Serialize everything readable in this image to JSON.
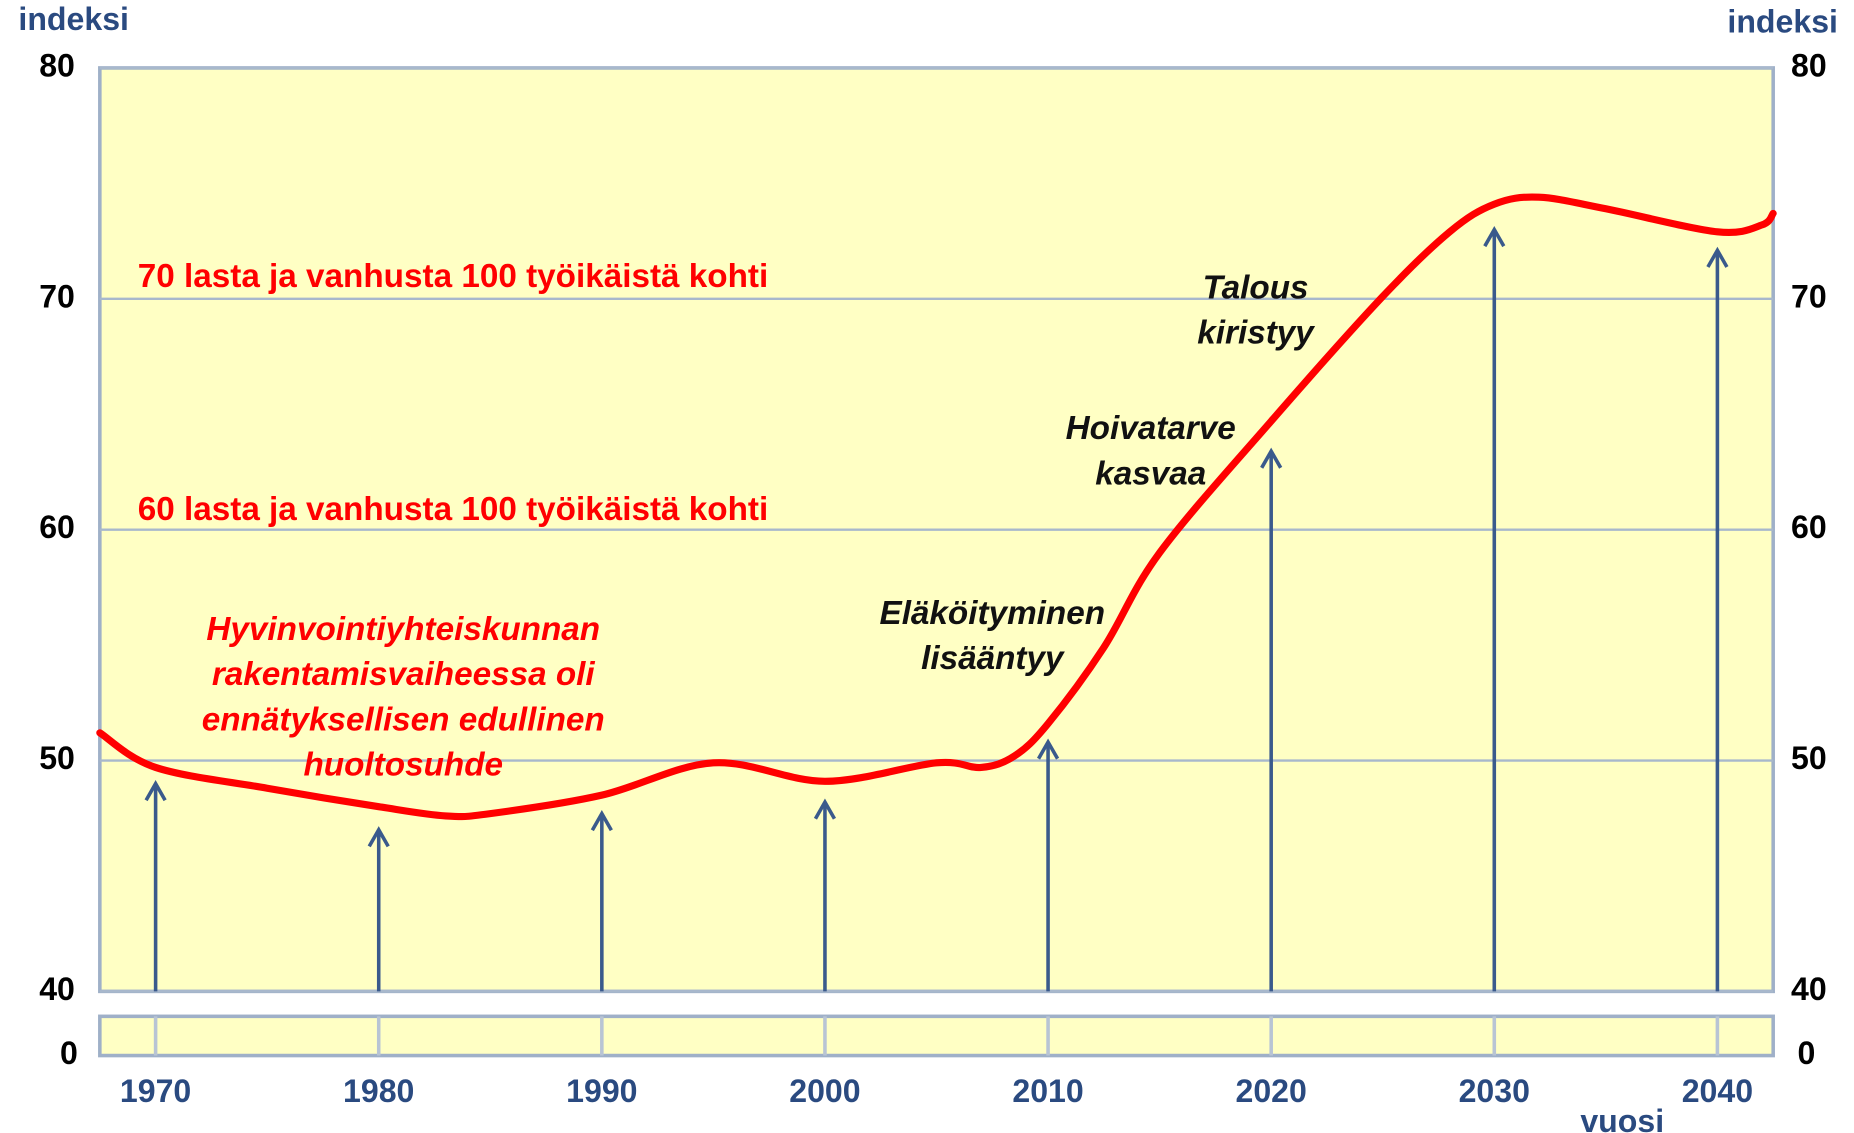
{
  "chart_data": {
    "type": "line",
    "ylabel": "indeksi",
    "y2label": "indeksi",
    "xlabel": "vuosi",
    "xlim": [
      1967.5,
      2042.5
    ],
    "xticks": [
      1970,
      1980,
      1990,
      2000,
      2010,
      2020,
      2030,
      2040
    ],
    "ylim": [
      40,
      80
    ],
    "yticks": [
      40,
      50,
      60,
      70,
      80
    ],
    "y2lim": [
      40,
      80
    ],
    "y2ticks": [
      40,
      50,
      60,
      70,
      80
    ],
    "lower_panel_ytick": 0,
    "lower_panel_y2tick": 0,
    "grid": true,
    "background": "#ffffc4",
    "series": [
      {
        "name": "huoltosuhde",
        "color": "#ff0000",
        "x": [
          1967.5,
          1970,
          1975,
          1980,
          1983,
          1985,
          1990,
          1995,
          2000,
          2005,
          2007,
          2008.5,
          2010,
          2012.5,
          2015,
          2020,
          2025,
          2028,
          2030,
          2032,
          2035,
          2040,
          2042,
          2042.5
        ],
        "values": [
          51.2,
          49.7,
          48.8,
          48.0,
          47.6,
          47.7,
          48.5,
          49.9,
          49.1,
          49.9,
          49.7,
          50.2,
          51.6,
          54.9,
          59.0,
          64.7,
          70.1,
          72.9,
          74.1,
          74.4,
          73.9,
          72.9,
          73.2,
          73.7
        ]
      }
    ],
    "arrows": {
      "color": "#3a5a8c",
      "x": [
        1970,
        1980,
        1990,
        2000,
        2010,
        2020,
        2030,
        2040
      ],
      "values": [
        49.0,
        47.0,
        47.7,
        48.2,
        50.8,
        63.4,
        73.0,
        72.1
      ]
    },
    "annotations": [
      {
        "lines": [
          "70 lasta ja vanhusta 100 työikäistä kohti"
        ],
        "color": "#ff0000",
        "italic": false,
        "x": 1969.2,
        "y": 70.9,
        "anchor": "start"
      },
      {
        "lines": [
          "60 lasta ja vanhusta 100 työikäistä kohti"
        ],
        "color": "#ff0000",
        "italic": false,
        "x": 1969.2,
        "y": 60.8,
        "anchor": "start"
      },
      {
        "lines": [
          "Hyvinvointiyhteiskunnan",
          "rakentamisvaiheessa oli",
          "ennätyksellisen edullinen",
          "huoltosuhde"
        ],
        "color": "#ff0000",
        "italic": true,
        "x": 1981.1,
        "y": 55.6,
        "anchor": "middle"
      },
      {
        "lines": [
          "Eläköityminen",
          "lisääntyy"
        ],
        "color": "#111111",
        "italic": true,
        "x": 2007.5,
        "y": 56.3,
        "anchor": "middle"
      },
      {
        "lines": [
          "Hoivatarve",
          "kasvaa"
        ],
        "color": "#111111",
        "italic": true,
        "x": 2014.6,
        "y": 64.3,
        "anchor": "middle"
      },
      {
        "lines": [
          "Talous",
          "kiristyy"
        ],
        "color": "#111111",
        "italic": true,
        "x": 2019.3,
        "y": 70.4,
        "anchor": "middle"
      }
    ]
  }
}
